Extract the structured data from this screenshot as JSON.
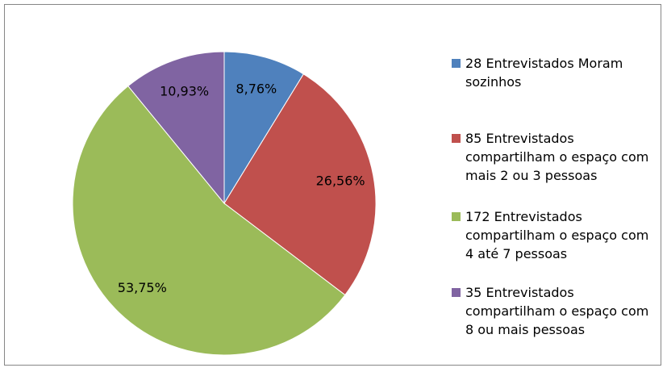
{
  "chart_data": {
    "type": "pie",
    "categories": [
      "28 Entrevistados Moram sozinhos",
      "85 Entrevistados compartilham o espaço com mais 2 ou 3 pessoas",
      "172 Entrevistados compartilham o espaço com 4 até 7 pessoas",
      "35 Entrevistados compartilham o espaço com 8 ou mais pessoas"
    ],
    "values": [
      8.76,
      26.56,
      53.75,
      10.93
    ],
    "value_labels": [
      "8,76%",
      "26,56%",
      "53,75%",
      "10,93%"
    ],
    "colors": [
      "#4f81bd",
      "#c0504d",
      "#9bbb59",
      "#8064a2"
    ],
    "legend": "right"
  }
}
